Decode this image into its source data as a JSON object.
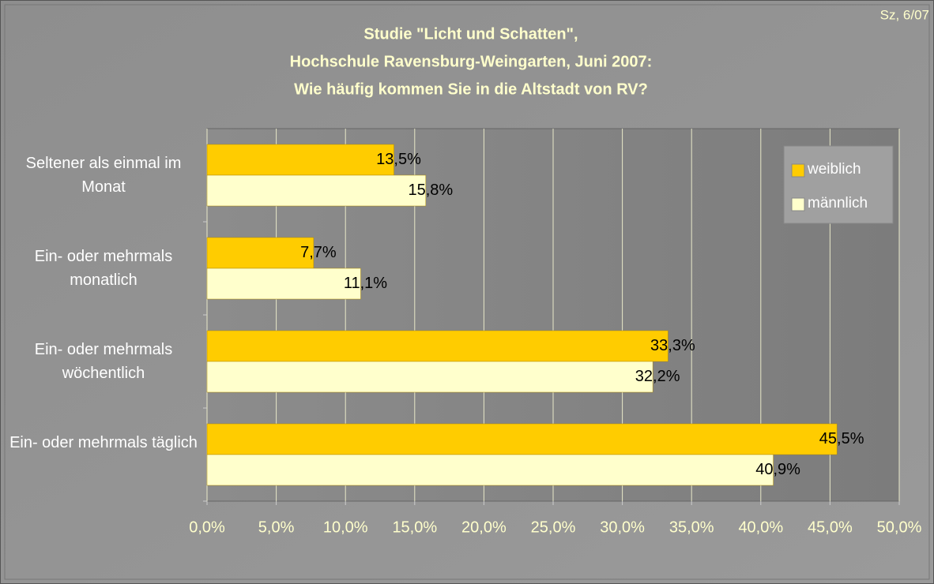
{
  "chart_data": {
    "type": "hbar",
    "corner_note": "Sz, 6/07",
    "title": [
      "Studie \"Licht und Schatten\",",
      "Hochschule Ravensburg-Weingarten, Juni 2007:",
      "Wie häufig kommen Sie in die Altstadt von RV?"
    ],
    "categories": [
      "Seltener als einmal im Monat",
      "Ein- oder mehrmals monatlich",
      "Ein- oder mehrmals wöchentlich",
      "Ein- oder mehrmals täglich"
    ],
    "series": [
      {
        "name": "weiblich",
        "color": "#ffcc00",
        "values": [
          13.5,
          7.7,
          33.3,
          45.5
        ],
        "value_labels": [
          "13,5%",
          "7,7%",
          "33,3%",
          "45,5%"
        ]
      },
      {
        "name": "männlich",
        "color": "#ffffcc",
        "values": [
          15.8,
          11.1,
          32.2,
          40.9
        ],
        "value_labels": [
          "15,8%",
          "11,1%",
          "32,2%",
          "40,9%"
        ]
      }
    ],
    "xlim": [
      0,
      50
    ],
    "xticks": [
      {
        "value": 0,
        "label": "0,0%"
      },
      {
        "value": 5,
        "label": "5,0%"
      },
      {
        "value": 10,
        "label": "10,0%"
      },
      {
        "value": 15,
        "label": "15,0%"
      },
      {
        "value": 20,
        "label": "20,0%"
      },
      {
        "value": 25,
        "label": "25,0%"
      },
      {
        "value": 30,
        "label": "30,0%"
      },
      {
        "value": 35,
        "label": "35,0%"
      },
      {
        "value": 40,
        "label": "40,0%"
      },
      {
        "value": 45,
        "label": "45,0%"
      },
      {
        "value": 50,
        "label": "50,0%"
      }
    ],
    "grid": true,
    "legend": "upper right"
  }
}
